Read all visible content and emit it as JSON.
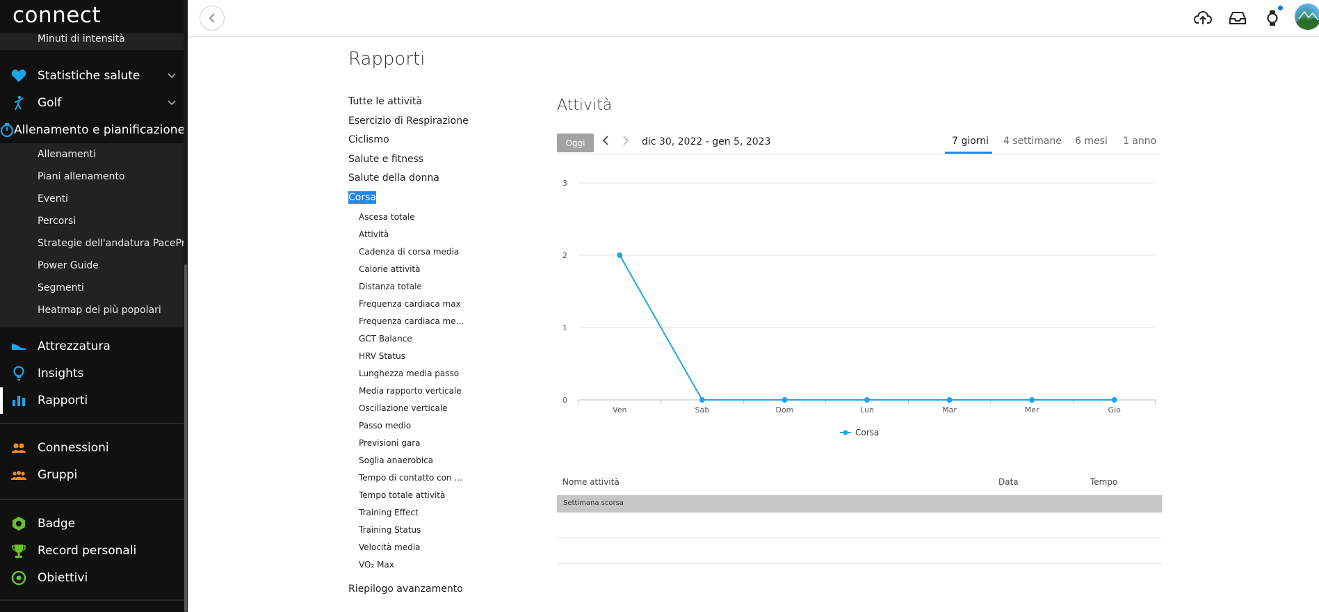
{
  "app": {
    "logo": "connect"
  },
  "sidebar": {
    "top_partial_item": "Minuti di intensità",
    "sections": [
      {
        "label": "Statistiche salute",
        "icon": "heart-icon",
        "color": "#1ea7e8",
        "expand": "chevron-down-icon"
      },
      {
        "label": "Golf",
        "icon": "golf-icon",
        "color": "#1ea7e8",
        "expand": "chevron-down-icon"
      },
      {
        "label": "Allenamento e pianificazione",
        "icon": "stopwatch-icon",
        "color": "#1ea7e8"
      }
    ],
    "training_sub": [
      "Allenamenti",
      "Piani allenamento",
      "Eventi",
      "Percorsi",
      "Strategie dell'andatura PacePro",
      "Power Guide",
      "Segmenti",
      "Heatmap dei più popolari"
    ],
    "group2": [
      {
        "label": "Attrezzatura",
        "icon": "shoe-icon",
        "color": "#1ea7e8"
      },
      {
        "label": "Insights",
        "icon": "lightbulb-icon",
        "color": "#1ea7e8"
      },
      {
        "label": "Rapporti",
        "icon": "bar-chart-icon",
        "color": "#1ea7e8",
        "active": true
      }
    ],
    "group3": [
      {
        "label": "Connessioni",
        "icon": "people-icon",
        "color": "#f28c1e"
      },
      {
        "label": "Gruppi",
        "icon": "group-icon",
        "color": "#f28c1e"
      }
    ],
    "group4": [
      {
        "label": "Badge",
        "icon": "badge-icon",
        "color": "#6abf2e"
      },
      {
        "label": "Record personali",
        "icon": "trophy-icon",
        "color": "#6abf2e"
      },
      {
        "label": "Obiettivi",
        "icon": "target-icon",
        "color": "#6abf2e"
      }
    ]
  },
  "topbar": {
    "icons": [
      "upload-icon",
      "inbox-icon",
      "watch-icon",
      "avatar"
    ]
  },
  "page": {
    "title": "Rapporti",
    "categories": [
      "Tutte le attività",
      "Esercizio di Respirazione",
      "Ciclismo",
      "Salute e fitness",
      "Salute della donna",
      "Corsa"
    ],
    "selected_category": "Corsa",
    "running_reports": [
      "Ascesa totale",
      "Attività",
      "Cadenza di corsa media",
      "Calorie attività",
      "Distanza totale",
      "Frequenza cardiaca max",
      "Frequenza cardiaca me...",
      "GCT Balance",
      "HRV Status",
      "Lunghezza media passo",
      "Media rapporto verticale",
      "Oscillazione verticale",
      "Passo medio",
      "Previsioni gara",
      "Soglia anaerobica",
      "Tempo di contatto con ...",
      "Tempo totale attività",
      "Training Effect",
      "Training Status",
      "Velocità media",
      "VO₂ Max"
    ],
    "footer_item": "Riepilogo avanzamento"
  },
  "report": {
    "title": "Attività",
    "today_button": "Oggi",
    "date_range": "dic 30, 2022 - gen 5, 2023",
    "range_tabs": [
      "7 giorni",
      "4 settimane",
      "6 mesi",
      "1 anno"
    ],
    "active_tab": "7 giorni"
  },
  "chart_data": {
    "type": "line",
    "categories": [
      "Ven",
      "Sab",
      "Dom",
      "Lun",
      "Mar",
      "Mer",
      "Gio"
    ],
    "series": [
      {
        "name": "Corsa",
        "values": [
          2,
          0,
          0,
          0,
          0,
          0,
          0
        ],
        "color": "#1ea7e8"
      }
    ],
    "ylim": [
      0,
      3
    ],
    "yticks": [
      0,
      1,
      2,
      3
    ],
    "grid": true,
    "legend": "bottom-center"
  },
  "table": {
    "columns": [
      "Nome attività",
      "Data",
      "Tempo"
    ],
    "group_label": "Settimana scorsa"
  }
}
